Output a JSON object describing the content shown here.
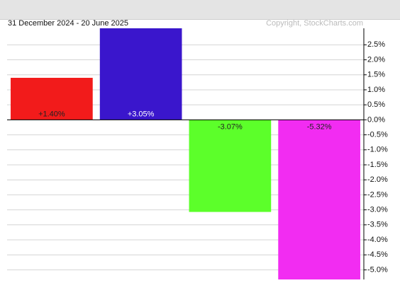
{
  "chart_data": {
    "type": "bar",
    "subtitle": "31 December 2024 - 20 June 2025",
    "credit": "Copyright, StockCharts.com",
    "values": [
      1.4,
      3.05,
      -3.07,
      -5.32
    ],
    "value_labels": [
      "+1.40%",
      "+3.05%",
      "-3.07%",
      "-5.32%"
    ],
    "colors": [
      "#f21b1b",
      "#3a16cc",
      "#5cff2a",
      "#f22cf2"
    ],
    "label_colors": [
      "#222222",
      "#ffffff",
      "#222222",
      "#222222"
    ],
    "ylim": [
      -5.32,
      3.05
    ],
    "yticks": [
      {
        "value": 2.5,
        "label": "2.5%"
      },
      {
        "value": 2.0,
        "label": "2.0%"
      },
      {
        "value": 1.5,
        "label": "1.5%"
      },
      {
        "value": 1.0,
        "label": "1.0%"
      },
      {
        "value": 0.5,
        "label": "0.5%"
      },
      {
        "value": 0.0,
        "label": "0.0%"
      },
      {
        "value": -0.5,
        "label": "-0.5%"
      },
      {
        "value": -1.0,
        "label": "-1.0%"
      },
      {
        "value": -1.5,
        "label": "-1.5%"
      },
      {
        "value": -2.0,
        "label": "-2.0%"
      },
      {
        "value": -2.5,
        "label": "-2.5%"
      },
      {
        "value": -3.0,
        "label": "-3.0%"
      },
      {
        "value": -3.5,
        "label": "-3.5%"
      },
      {
        "value": -4.0,
        "label": "-4.0%"
      },
      {
        "value": -4.5,
        "label": "-4.5%"
      },
      {
        "value": -5.0,
        "label": "-5.0%"
      }
    ],
    "grid": true
  }
}
